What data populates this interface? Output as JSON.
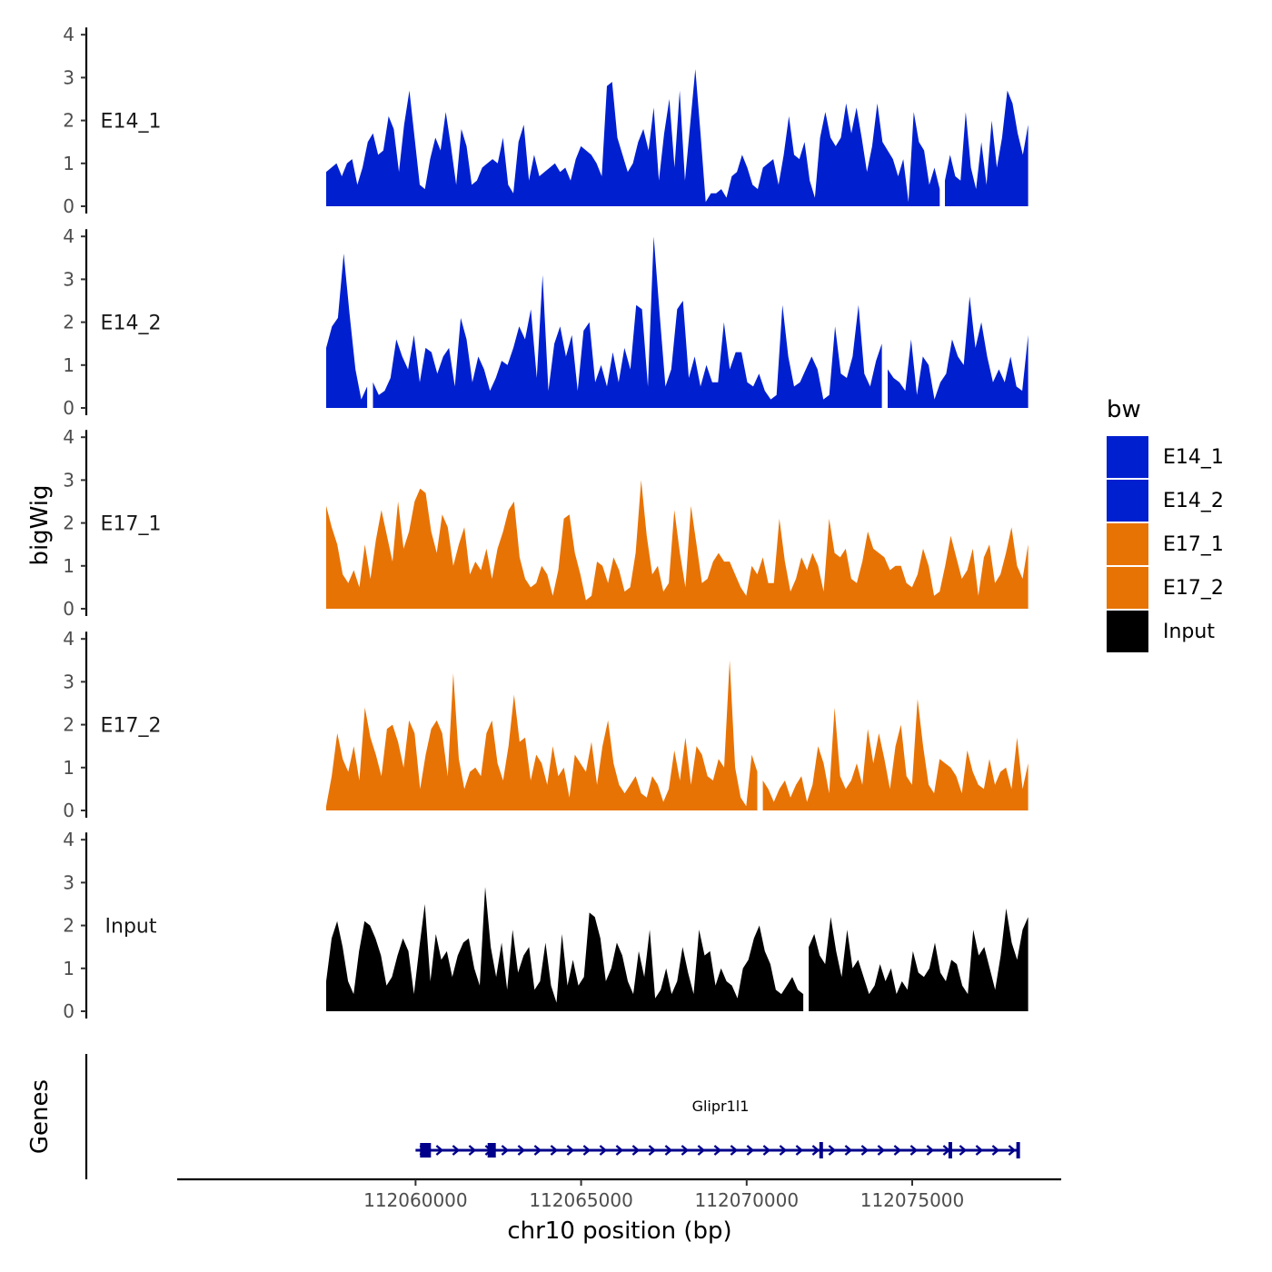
{
  "chart_data": {
    "type": "area",
    "xlabel": "chr10 position (bp)",
    "ylabel": "bigWig",
    "gene_panel_label": "Genes",
    "xlim": [
      112052800,
      112079500
    ],
    "x_ticks": [
      112060000,
      112065000,
      112070000,
      112075000
    ],
    "x_tick_labels": [
      "112060000",
      "112065000",
      "112070000",
      "112075000"
    ],
    "ylim": [
      0,
      4
    ],
    "y_ticks": [
      0,
      1,
      2,
      3,
      4
    ],
    "y_tick_labels": [
      "0",
      "1",
      "2",
      "3",
      "4"
    ],
    "data_range": [
      112057300,
      112078500
    ],
    "legend": {
      "title": "bw",
      "placement": "right",
      "entries": [
        {
          "label": "E14_1",
          "color": "#0020d0"
        },
        {
          "label": "E14_2",
          "color": "#0020d0"
        },
        {
          "label": "E17_1",
          "color": "#e87305"
        },
        {
          "label": "E17_2",
          "color": "#e87305"
        },
        {
          "label": "Input",
          "color": "#000000"
        }
      ]
    },
    "series": [
      {
        "name": "E14_1",
        "color": "#0020d0",
        "values": [
          0.8,
          0.9,
          1.0,
          0.7,
          1.0,
          1.1,
          0.5,
          0.9,
          1.5,
          1.7,
          1.2,
          1.3,
          2.1,
          1.8,
          0.8,
          1.9,
          2.7,
          1.6,
          0.5,
          0.4,
          1.1,
          1.6,
          1.3,
          2.2,
          1.4,
          0.5,
          1.8,
          1.4,
          0.5,
          0.6,
          0.9,
          1.0,
          1.1,
          1.0,
          1.6,
          0.5,
          0.3,
          1.5,
          1.9,
          0.6,
          1.2,
          0.7,
          0.8,
          0.9,
          1.0,
          0.8,
          0.9,
          0.6,
          1.1,
          1.4,
          1.3,
          1.2,
          1.0,
          0.7,
          2.8,
          2.9,
          1.6,
          1.2,
          0.8,
          1.0,
          1.5,
          1.8,
          1.3,
          2.3,
          0.6,
          1.7,
          2.5,
          0.9,
          2.7,
          0.6,
          1.9,
          3.2,
          1.7,
          0.1,
          0.3,
          0.3,
          0.4,
          0.2,
          0.7,
          0.8,
          1.2,
          0.9,
          0.5,
          0.4,
          0.9,
          1.0,
          1.1,
          0.5,
          1.2,
          2.1,
          1.2,
          1.1,
          1.5,
          0.6,
          0.2,
          1.6,
          2.2,
          1.6,
          1.4,
          1.6,
          2.4,
          1.7,
          2.3,
          1.6,
          0.8,
          1.4,
          2.4,
          1.5,
          1.3,
          1.1,
          0.7,
          1.1,
          0.1,
          2.2,
          1.5,
          1.3,
          0.5,
          0.9,
          0.4,
          0.6,
          1.2,
          0.7,
          0.6,
          2.2,
          0.9,
          0.4,
          1.5,
          0.5,
          2.0,
          0.9,
          1.6,
          2.7,
          2.4,
          1.7,
          1.2,
          1.9
        ],
        "gaps": [
          119
        ]
      },
      {
        "name": "E14_2",
        "color": "#0020d0",
        "values": [
          1.4,
          1.9,
          2.1,
          3.6,
          2.2,
          0.9,
          0.2,
          0.5,
          0.6,
          0.3,
          0.4,
          0.7,
          1.6,
          1.2,
          0.9,
          1.7,
          0.6,
          1.4,
          1.3,
          0.8,
          1.2,
          1.4,
          0.5,
          2.1,
          1.6,
          0.6,
          1.2,
          0.9,
          0.4,
          0.7,
          1.1,
          1.0,
          1.4,
          1.9,
          1.6,
          2.3,
          0.7,
          3.1,
          0.4,
          1.5,
          1.9,
          1.2,
          1.7,
          0.4,
          1.8,
          2.0,
          0.6,
          1.0,
          0.5,
          1.3,
          0.6,
          1.4,
          0.9,
          2.4,
          2.3,
          0.5,
          4.0,
          2.2,
          0.5,
          0.9,
          2.3,
          2.5,
          0.7,
          1.2,
          0.5,
          1.0,
          0.6,
          0.6,
          2.0,
          0.9,
          1.3,
          1.3,
          0.6,
          0.5,
          0.8,
          0.4,
          0.2,
          0.3,
          2.4,
          1.2,
          0.5,
          0.6,
          0.9,
          1.2,
          0.9,
          0.2,
          0.3,
          1.9,
          0.8,
          0.7,
          1.2,
          2.4,
          0.8,
          0.5,
          1.1,
          1.5,
          0.9,
          0.7,
          0.6,
          0.4,
          1.6,
          0.3,
          1.2,
          1.0,
          0.2,
          0.6,
          0.8,
          1.6,
          1.2,
          1.0,
          2.6,
          1.4,
          2.0,
          1.2,
          0.6,
          0.9,
          0.6,
          1.2,
          0.5,
          0.4,
          1.7
        ],
        "gaps": [
          8,
          96
        ]
      },
      {
        "name": "E17_1",
        "color": "#e87305",
        "values": [
          2.4,
          1.9,
          1.5,
          0.8,
          0.6,
          0.9,
          0.5,
          1.5,
          0.7,
          1.6,
          2.3,
          1.7,
          1.1,
          2.5,
          1.4,
          1.8,
          2.5,
          2.8,
          2.7,
          1.8,
          1.3,
          2.2,
          1.9,
          1.0,
          1.5,
          1.9,
          0.8,
          1.1,
          0.9,
          1.4,
          0.7,
          1.4,
          1.8,
          2.3,
          2.5,
          1.2,
          0.7,
          0.5,
          0.6,
          1.0,
          0.8,
          0.3,
          0.9,
          2.1,
          2.2,
          1.3,
          0.8,
          0.2,
          0.3,
          1.1,
          1.0,
          0.6,
          1.2,
          0.9,
          0.4,
          0.5,
          1.3,
          3.0,
          1.7,
          0.8,
          1.0,
          0.4,
          0.6,
          2.3,
          1.3,
          0.5,
          2.4,
          1.5,
          0.6,
          0.7,
          1.1,
          1.3,
          1.1,
          1.1,
          0.8,
          0.5,
          0.3,
          1.0,
          0.8,
          1.2,
          0.6,
          0.6,
          2.1,
          1.1,
          0.4,
          0.7,
          1.2,
          0.9,
          1.3,
          1.0,
          0.4,
          2.1,
          1.3,
          1.2,
          1.4,
          0.7,
          0.6,
          1.1,
          1.8,
          1.4,
          1.3,
          1.2,
          0.9,
          1.0,
          1.0,
          0.6,
          0.5,
          0.8,
          1.4,
          1.0,
          0.3,
          0.4,
          1.0,
          1.7,
          1.2,
          0.7,
          0.9,
          1.4,
          0.3,
          1.2,
          1.5,
          0.6,
          0.8,
          1.3,
          1.9,
          1.0,
          0.7,
          1.5
        ],
        "gaps": []
      },
      {
        "name": "E17_2",
        "color": "#e87305",
        "values": [
          0.1,
          0.8,
          1.8,
          1.2,
          0.9,
          1.5,
          0.7,
          2.4,
          1.7,
          1.3,
          0.8,
          1.9,
          2.0,
          1.6,
          1.0,
          2.1,
          1.8,
          0.5,
          1.3,
          1.9,
          2.1,
          1.8,
          0.8,
          3.2,
          1.2,
          0.5,
          0.9,
          1.0,
          0.8,
          1.8,
          2.1,
          1.1,
          0.7,
          1.5,
          2.7,
          1.6,
          1.7,
          0.7,
          1.3,
          1.1,
          0.6,
          1.5,
          0.8,
          1.0,
          0.3,
          1.3,
          1.1,
          0.9,
          1.6,
          0.6,
          1.5,
          2.1,
          1.1,
          0.6,
          0.4,
          0.6,
          0.8,
          0.4,
          0.3,
          0.8,
          0.6,
          0.2,
          0.5,
          1.4,
          0.7,
          1.7,
          0.6,
          1.5,
          1.3,
          0.8,
          0.7,
          1.2,
          1.0,
          3.5,
          1.0,
          0.3,
          0.1,
          1.3,
          0.9,
          0.7,
          0.5,
          0.2,
          0.5,
          0.7,
          0.3,
          0.6,
          0.8,
          0.2,
          0.6,
          1.5,
          1.1,
          0.4,
          2.4,
          0.8,
          0.5,
          0.7,
          1.1,
          0.6,
          1.9,
          1.1,
          1.8,
          1.2,
          0.5,
          1.5,
          2.0,
          0.8,
          0.6,
          2.6,
          1.5,
          0.6,
          0.4,
          1.2,
          1.1,
          1.0,
          0.8,
          0.4,
          1.4,
          0.9,
          0.6,
          0.5,
          1.2,
          0.6,
          0.9,
          1.0,
          0.5,
          1.7,
          0.5,
          1.1
        ],
        "gaps": [
          79
        ]
      },
      {
        "name": "Input",
        "color": "#000000",
        "values": [
          0.7,
          1.7,
          2.1,
          1.5,
          0.7,
          0.4,
          1.4,
          2.1,
          2.0,
          1.7,
          1.3,
          0.6,
          0.8,
          1.3,
          1.7,
          1.4,
          0.4,
          1.5,
          2.5,
          0.7,
          1.8,
          1.2,
          1.4,
          0.8,
          1.3,
          1.6,
          1.7,
          1.0,
          0.6,
          2.9,
          1.5,
          0.8,
          1.6,
          0.5,
          1.9,
          0.9,
          1.3,
          1.5,
          0.5,
          0.7,
          1.6,
          0.6,
          0.2,
          1.8,
          0.6,
          1.2,
          0.6,
          0.8,
          2.3,
          2.2,
          1.7,
          0.7,
          1.0,
          1.6,
          1.3,
          0.7,
          0.4,
          1.4,
          0.8,
          1.9,
          0.3,
          0.5,
          1.0,
          0.4,
          0.7,
          1.5,
          0.9,
          0.4,
          1.9,
          1.3,
          1.4,
          0.6,
          1.0,
          0.7,
          0.6,
          0.3,
          1.0,
          1.2,
          1.7,
          2.0,
          1.4,
          1.1,
          0.5,
          0.4,
          0.6,
          0.8,
          0.5,
          0.4,
          1.5,
          1.8,
          1.3,
          1.1,
          2.2,
          1.4,
          0.8,
          1.9,
          1.0,
          1.2,
          0.8,
          0.4,
          0.6,
          1.1,
          0.7,
          1.0,
          0.4,
          0.7,
          0.5,
          1.4,
          0.9,
          0.8,
          1.0,
          1.6,
          0.9,
          0.7,
          1.2,
          1.1,
          0.6,
          0.4,
          1.9,
          1.3,
          1.5,
          1.0,
          0.5,
          1.3,
          2.4,
          1.6,
          1.2,
          1.9,
          2.2
        ],
        "gaps": [
          88
        ]
      }
    ],
    "genes": [
      {
        "name": "Glipr1l1",
        "start": 112060000,
        "end": 112078200,
        "strand": "+",
        "exons": [
          112060300,
          112062300,
          112072250,
          112076150,
          112078200
        ]
      }
    ]
  }
}
